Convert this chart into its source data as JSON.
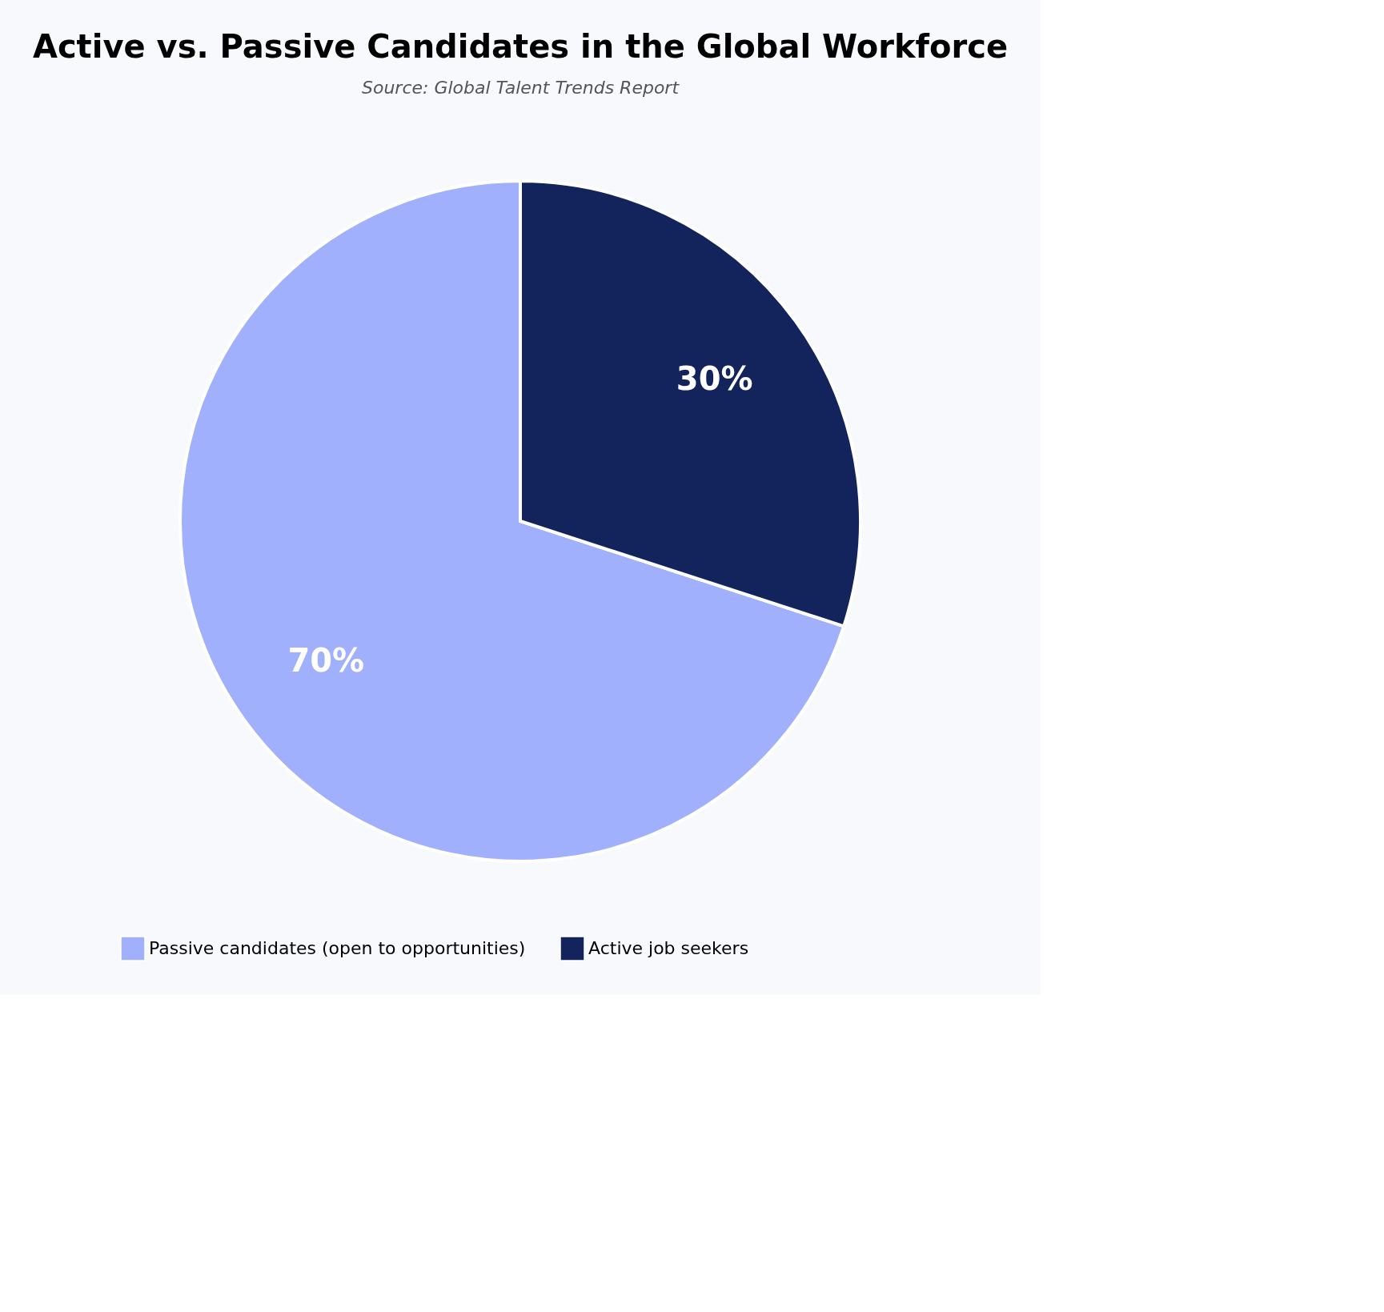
{
  "chart_data": {
    "type": "pie",
    "title": "Active vs. Passive Candidates in the Global Workforce",
    "subtitle": "Source: Global Talent Trends Report",
    "categories": [
      "Passive candidates (open to opportunities)",
      "Active job seekers"
    ],
    "values": [
      70,
      30
    ],
    "colors": [
      "#a0b0fd",
      "#13235b"
    ],
    "value_labels": [
      "70%",
      "30%"
    ],
    "legend": "bottom"
  }
}
